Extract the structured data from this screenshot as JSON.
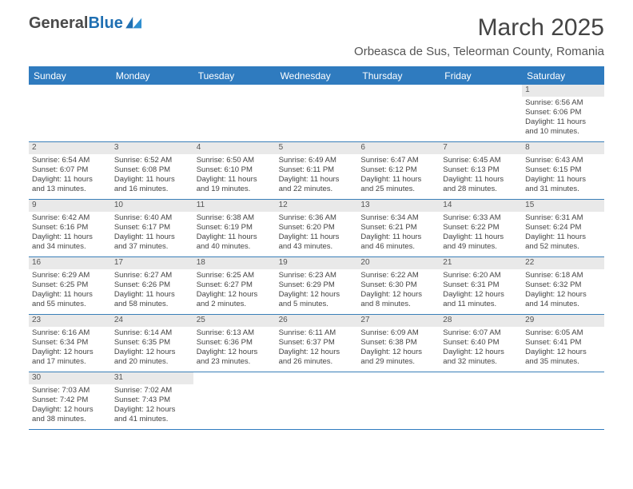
{
  "brand": {
    "part1": "General",
    "part2": "Blue"
  },
  "title": "March 2025",
  "location": "Orbeasca de Sus, Teleorman County, Romania",
  "colors": {
    "accent": "#2f7bbf",
    "headerText": "#ffffff",
    "daybg": "#e9e9e9"
  },
  "weekdays": [
    "Sunday",
    "Monday",
    "Tuesday",
    "Wednesday",
    "Thursday",
    "Friday",
    "Saturday"
  ],
  "weeks": [
    [
      null,
      null,
      null,
      null,
      null,
      null,
      {
        "d": "1",
        "sr": "Sunrise: 6:56 AM",
        "ss": "Sunset: 6:06 PM",
        "dl1": "Daylight: 11 hours",
        "dl2": "and 10 minutes."
      }
    ],
    [
      {
        "d": "2",
        "sr": "Sunrise: 6:54 AM",
        "ss": "Sunset: 6:07 PM",
        "dl1": "Daylight: 11 hours",
        "dl2": "and 13 minutes."
      },
      {
        "d": "3",
        "sr": "Sunrise: 6:52 AM",
        "ss": "Sunset: 6:08 PM",
        "dl1": "Daylight: 11 hours",
        "dl2": "and 16 minutes."
      },
      {
        "d": "4",
        "sr": "Sunrise: 6:50 AM",
        "ss": "Sunset: 6:10 PM",
        "dl1": "Daylight: 11 hours",
        "dl2": "and 19 minutes."
      },
      {
        "d": "5",
        "sr": "Sunrise: 6:49 AM",
        "ss": "Sunset: 6:11 PM",
        "dl1": "Daylight: 11 hours",
        "dl2": "and 22 minutes."
      },
      {
        "d": "6",
        "sr": "Sunrise: 6:47 AM",
        "ss": "Sunset: 6:12 PM",
        "dl1": "Daylight: 11 hours",
        "dl2": "and 25 minutes."
      },
      {
        "d": "7",
        "sr": "Sunrise: 6:45 AM",
        "ss": "Sunset: 6:13 PM",
        "dl1": "Daylight: 11 hours",
        "dl2": "and 28 minutes."
      },
      {
        "d": "8",
        "sr": "Sunrise: 6:43 AM",
        "ss": "Sunset: 6:15 PM",
        "dl1": "Daylight: 11 hours",
        "dl2": "and 31 minutes."
      }
    ],
    [
      {
        "d": "9",
        "sr": "Sunrise: 6:42 AM",
        "ss": "Sunset: 6:16 PM",
        "dl1": "Daylight: 11 hours",
        "dl2": "and 34 minutes."
      },
      {
        "d": "10",
        "sr": "Sunrise: 6:40 AM",
        "ss": "Sunset: 6:17 PM",
        "dl1": "Daylight: 11 hours",
        "dl2": "and 37 minutes."
      },
      {
        "d": "11",
        "sr": "Sunrise: 6:38 AM",
        "ss": "Sunset: 6:19 PM",
        "dl1": "Daylight: 11 hours",
        "dl2": "and 40 minutes."
      },
      {
        "d": "12",
        "sr": "Sunrise: 6:36 AM",
        "ss": "Sunset: 6:20 PM",
        "dl1": "Daylight: 11 hours",
        "dl2": "and 43 minutes."
      },
      {
        "d": "13",
        "sr": "Sunrise: 6:34 AM",
        "ss": "Sunset: 6:21 PM",
        "dl1": "Daylight: 11 hours",
        "dl2": "and 46 minutes."
      },
      {
        "d": "14",
        "sr": "Sunrise: 6:33 AM",
        "ss": "Sunset: 6:22 PM",
        "dl1": "Daylight: 11 hours",
        "dl2": "and 49 minutes."
      },
      {
        "d": "15",
        "sr": "Sunrise: 6:31 AM",
        "ss": "Sunset: 6:24 PM",
        "dl1": "Daylight: 11 hours",
        "dl2": "and 52 minutes."
      }
    ],
    [
      {
        "d": "16",
        "sr": "Sunrise: 6:29 AM",
        "ss": "Sunset: 6:25 PM",
        "dl1": "Daylight: 11 hours",
        "dl2": "and 55 minutes."
      },
      {
        "d": "17",
        "sr": "Sunrise: 6:27 AM",
        "ss": "Sunset: 6:26 PM",
        "dl1": "Daylight: 11 hours",
        "dl2": "and 58 minutes."
      },
      {
        "d": "18",
        "sr": "Sunrise: 6:25 AM",
        "ss": "Sunset: 6:27 PM",
        "dl1": "Daylight: 12 hours",
        "dl2": "and 2 minutes."
      },
      {
        "d": "19",
        "sr": "Sunrise: 6:23 AM",
        "ss": "Sunset: 6:29 PM",
        "dl1": "Daylight: 12 hours",
        "dl2": "and 5 minutes."
      },
      {
        "d": "20",
        "sr": "Sunrise: 6:22 AM",
        "ss": "Sunset: 6:30 PM",
        "dl1": "Daylight: 12 hours",
        "dl2": "and 8 minutes."
      },
      {
        "d": "21",
        "sr": "Sunrise: 6:20 AM",
        "ss": "Sunset: 6:31 PM",
        "dl1": "Daylight: 12 hours",
        "dl2": "and 11 minutes."
      },
      {
        "d": "22",
        "sr": "Sunrise: 6:18 AM",
        "ss": "Sunset: 6:32 PM",
        "dl1": "Daylight: 12 hours",
        "dl2": "and 14 minutes."
      }
    ],
    [
      {
        "d": "23",
        "sr": "Sunrise: 6:16 AM",
        "ss": "Sunset: 6:34 PM",
        "dl1": "Daylight: 12 hours",
        "dl2": "and 17 minutes."
      },
      {
        "d": "24",
        "sr": "Sunrise: 6:14 AM",
        "ss": "Sunset: 6:35 PM",
        "dl1": "Daylight: 12 hours",
        "dl2": "and 20 minutes."
      },
      {
        "d": "25",
        "sr": "Sunrise: 6:13 AM",
        "ss": "Sunset: 6:36 PM",
        "dl1": "Daylight: 12 hours",
        "dl2": "and 23 minutes."
      },
      {
        "d": "26",
        "sr": "Sunrise: 6:11 AM",
        "ss": "Sunset: 6:37 PM",
        "dl1": "Daylight: 12 hours",
        "dl2": "and 26 minutes."
      },
      {
        "d": "27",
        "sr": "Sunrise: 6:09 AM",
        "ss": "Sunset: 6:38 PM",
        "dl1": "Daylight: 12 hours",
        "dl2": "and 29 minutes."
      },
      {
        "d": "28",
        "sr": "Sunrise: 6:07 AM",
        "ss": "Sunset: 6:40 PM",
        "dl1": "Daylight: 12 hours",
        "dl2": "and 32 minutes."
      },
      {
        "d": "29",
        "sr": "Sunrise: 6:05 AM",
        "ss": "Sunset: 6:41 PM",
        "dl1": "Daylight: 12 hours",
        "dl2": "and 35 minutes."
      }
    ],
    [
      {
        "d": "30",
        "sr": "Sunrise: 7:03 AM",
        "ss": "Sunset: 7:42 PM",
        "dl1": "Daylight: 12 hours",
        "dl2": "and 38 minutes."
      },
      {
        "d": "31",
        "sr": "Sunrise: 7:02 AM",
        "ss": "Sunset: 7:43 PM",
        "dl1": "Daylight: 12 hours",
        "dl2": "and 41 minutes."
      },
      null,
      null,
      null,
      null,
      null
    ]
  ]
}
